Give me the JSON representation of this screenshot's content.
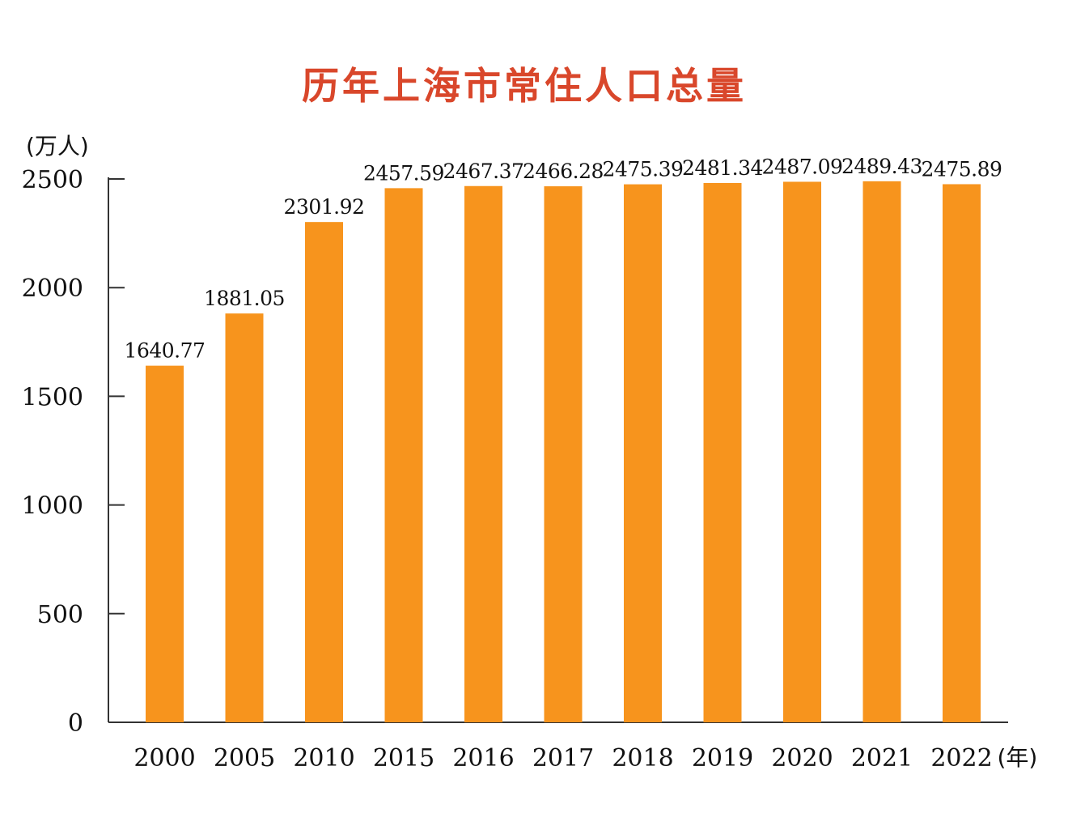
{
  "chart_data": {
    "type": "bar",
    "title": "历年上海市常住人口总量",
    "ylabel": "(万人)",
    "xlabel": "(年)",
    "categories": [
      "2000",
      "2005",
      "2010",
      "2015",
      "2016",
      "2017",
      "2018",
      "2019",
      "2020",
      "2021",
      "2022"
    ],
    "values": [
      1640.77,
      1881.05,
      2301.92,
      2457.59,
      2467.37,
      2466.28,
      2475.39,
      2481.34,
      2487.09,
      2489.43,
      2475.89
    ],
    "value_labels": [
      "1640.77",
      "1881.05",
      "2301.92",
      "2457.59",
      "2467.37",
      "2466.28",
      "2475.39",
      "2481.34",
      "2487.09",
      "2489.43",
      "2475.89"
    ],
    "yticks": [
      0,
      500,
      1000,
      1500,
      2000,
      2500
    ],
    "ylim": [
      0,
      2500
    ],
    "grid": false,
    "legend": "none",
    "bar_color": "#f7941d",
    "title_color": "#d9472b"
  }
}
